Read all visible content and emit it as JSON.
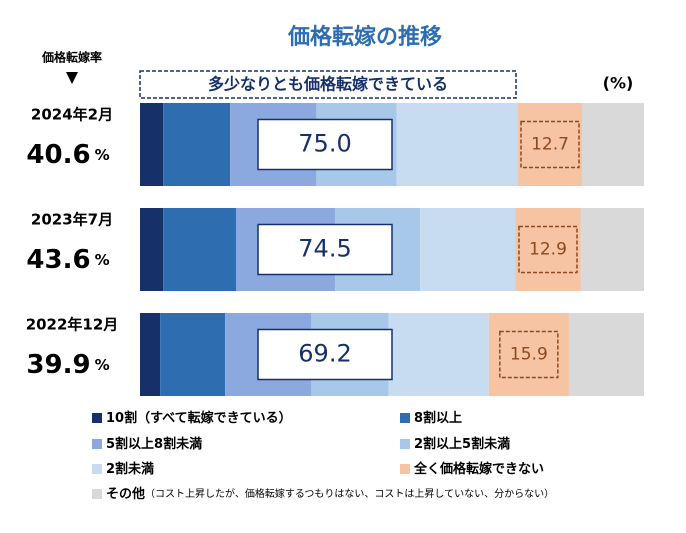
{
  "chart_data": {
    "type": "stacked-bar-horizontal",
    "title": "価格転嫁の推移",
    "categories": [
      "2024年2月",
      "2023年7月",
      "2022年12月"
    ],
    "pass_through_rates": {
      "name": "価格転嫁率",
      "values": [
        40.6,
        43.6,
        39.9
      ],
      "unit": "%"
    },
    "banner": "多少なりとも価格転嫁できている",
    "unit_label": "(%)",
    "xlim": [
      0,
      100
    ],
    "totals": {
      "values": [
        75.0,
        74.5,
        69.2
      ],
      "value_labels": [
        "75.0",
        "74.5",
        "69.2"
      ]
    },
    "series": [
      {
        "name": "10割（すべて転嫁できている）",
        "color": "#16306a",
        "values": [
          4.6,
          4.6,
          4.0
        ]
      },
      {
        "name": "8割以上",
        "color": "#2e6eb0",
        "values": [
          13.3,
          14.5,
          12.9
        ]
      },
      {
        "name": "5割以上8割未満",
        "color": "#8ba9de",
        "values": [
          17.1,
          19.6,
          17.1
        ]
      },
      {
        "name": "2割以上5割未満",
        "color": "#a8c8ea",
        "values": [
          15.9,
          16.9,
          15.3
        ]
      },
      {
        "name": "2割未満",
        "color": "#c7dcf1",
        "values": [
          24.1,
          18.9,
          19.9
        ]
      },
      {
        "name": "全く価格転嫁できない",
        "color": "#f6c3a3",
        "values": [
          12.7,
          12.9,
          15.9
        ]
      },
      {
        "name": "その他",
        "color": "#d9d9d9",
        "values": [
          12.3,
          12.6,
          14.9
        ]
      }
    ],
    "legend_note": "（コスト上昇したが、価格転嫁するつもりはない、コストは上昇していない、分からない）"
  }
}
